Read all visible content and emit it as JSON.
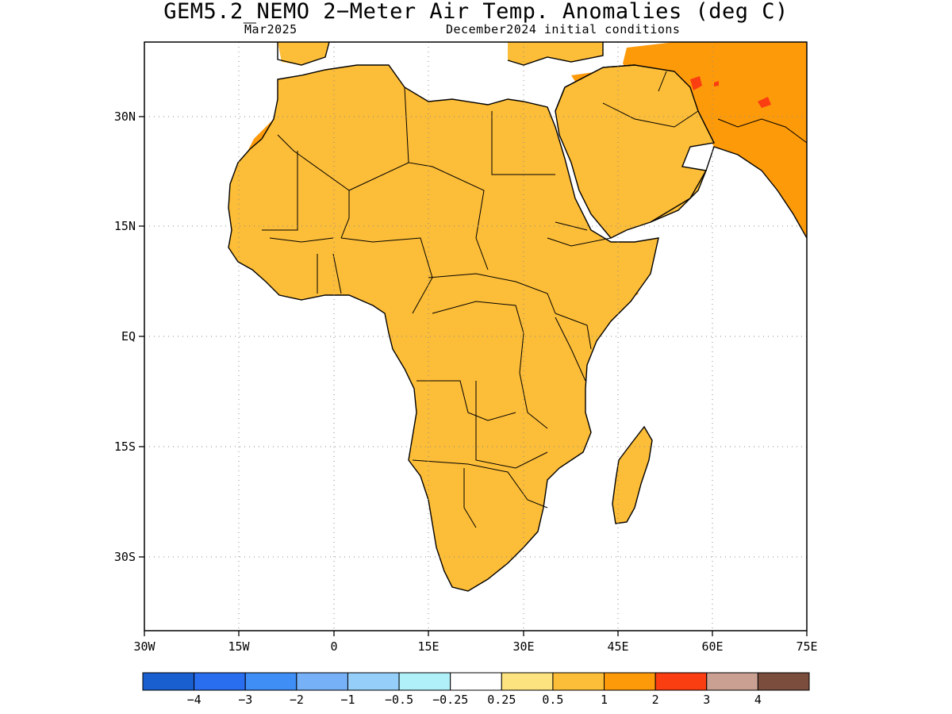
{
  "title": "GEM5.2_NEMO 2−Meter Air Temp. Anomalies (deg C)",
  "subtitle_left": "Mar2025",
  "subtitle_right": "December2024 initial conditions",
  "map": {
    "region": "Africa and Arabian Peninsula",
    "lon_range": [
      -30,
      75
    ],
    "lat_range": [
      -40,
      40
    ],
    "x_tick_labels": [
      "30W",
      "15W",
      "0",
      "15E",
      "30E",
      "45E",
      "60E",
      "75E"
    ],
    "y_tick_labels": [
      "30N",
      "15N",
      "EQ",
      "15S",
      "30S"
    ],
    "gridlines": "dotted",
    "dominant_anomaly": "warm (0.25 to 2 deg C) over most of the continent",
    "hotspots": [
      "Iran and Afghanistan 2 to 3 deg C"
    ]
  },
  "colorbar": {
    "colors": [
      "#1a5fd0",
      "#2a6ef0",
      "#3e8ef5",
      "#76b0f7",
      "#95cef8",
      "#b0f0f8",
      "#ffffff",
      "#fde380",
      "#fcbd38",
      "#fd9a0a",
      "#fb3d12",
      "#c9a091",
      "#7a4d3d"
    ],
    "labels": [
      "−4",
      "−3",
      "−2",
      "−1",
      "−0.5",
      "−0.25",
      "0.25",
      "0.5",
      "1",
      "2",
      "3",
      "4"
    ]
  }
}
